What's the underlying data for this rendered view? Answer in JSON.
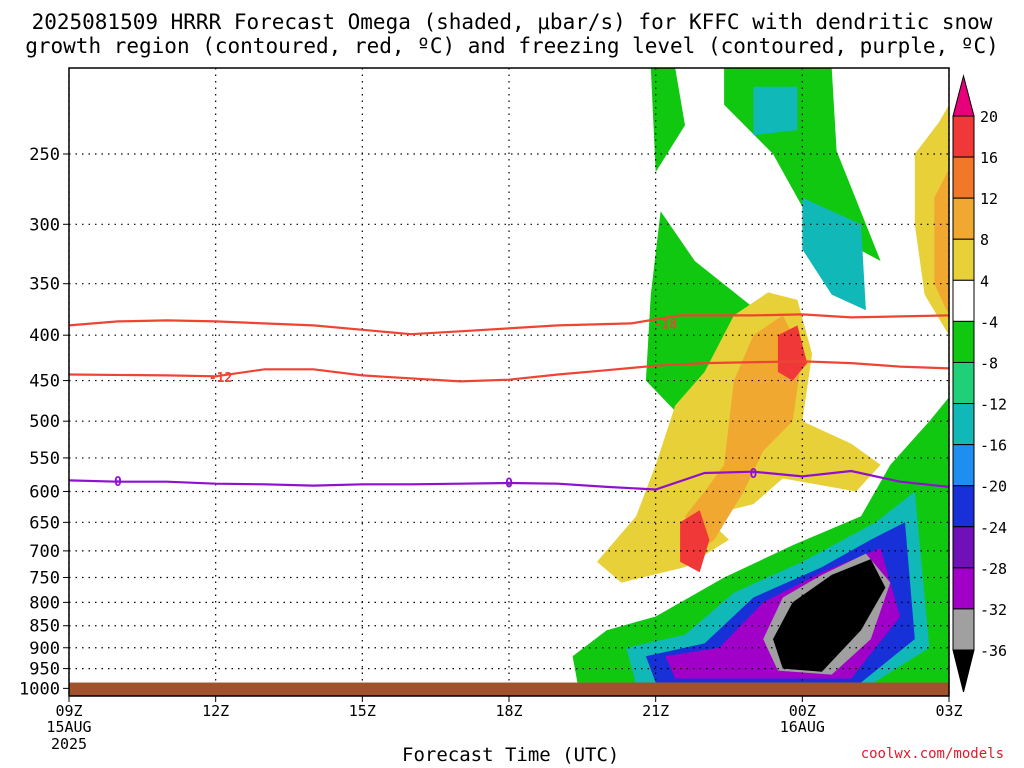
{
  "header": {
    "title_line1": "2025081509 HRRR Forecast Omega (shaded, μbar/s) for KFFC with dendritic snow",
    "title_line2": "growth region (contoured, red, ºC) and freezing level (contoured, purple, ºC)"
  },
  "footer": {
    "xlabel": "Forecast Time (UTC)",
    "credit": "coolwx.com/models"
  },
  "colors": {
    "dgz": "#ee4433",
    "freezing": "#9010d0",
    "ground": "#a0522d"
  },
  "chart_data": {
    "type": "heatmap",
    "title": "2025081509 HRRR Forecast Omega (shaded, μbar/s) for KFFC with dendritic snow growth region (contoured, red, ºC) and freezing level (contoured, purple, ºC)",
    "xlabel": "Forecast Time (UTC)",
    "ylabel": "",
    "y_scale": "log-pressure",
    "ylim": [
      1020,
      200
    ],
    "xlim": [
      0,
      18
    ],
    "x_ticks": [
      {
        "hour": 0,
        "label": "09Z",
        "label2": "15AUG",
        "label3": "2025"
      },
      {
        "hour": 3,
        "label": "12Z"
      },
      {
        "hour": 6,
        "label": "15Z"
      },
      {
        "hour": 9,
        "label": "18Z"
      },
      {
        "hour": 12,
        "label": "21Z"
      },
      {
        "hour": 15,
        "label": "00Z",
        "label2": "16AUG"
      },
      {
        "hour": 18,
        "label": "03Z"
      }
    ],
    "y_ticks": [
      250,
      300,
      350,
      400,
      450,
      500,
      550,
      600,
      650,
      700,
      750,
      800,
      850,
      900,
      950,
      1000
    ],
    "grid": true,
    "ground_below_hpa": 985,
    "colorbar": {
      "ticks": [
        20,
        16,
        12,
        8,
        4,
        -4,
        -8,
        -12,
        -16,
        -20,
        -24,
        -28,
        -32,
        -36
      ],
      "colors": [
        "#e8007a",
        "#f03838",
        "#f07828",
        "#f0a830",
        "#e8d038",
        "#ffffff",
        "#10c810",
        "#20d078",
        "#10b8b8",
        "#1e8ef0",
        "#1830d8",
        "#7010b8",
        "#a000c8",
        "#a0a0a0",
        "#000000"
      ]
    },
    "contours": [
      {
        "name": "-18",
        "color": "#ee4433",
        "points": [
          [
            0,
            390
          ],
          [
            1,
            386
          ],
          [
            2,
            385
          ],
          [
            3,
            386
          ],
          [
            5,
            390
          ],
          [
            7,
            399
          ],
          [
            8,
            396
          ],
          [
            10,
            390
          ],
          [
            11.5,
            388
          ],
          [
            12.5,
            380
          ],
          [
            14,
            380
          ],
          [
            15,
            379
          ],
          [
            16,
            382
          ],
          [
            18,
            380
          ]
        ]
      },
      {
        "name": "-12",
        "color": "#ee4433",
        "points": [
          [
            0,
            443
          ],
          [
            2,
            444
          ],
          [
            3,
            445
          ],
          [
            4,
            437
          ],
          [
            5,
            437
          ],
          [
            6,
            444
          ],
          [
            8,
            451
          ],
          [
            9,
            449
          ],
          [
            10,
            443
          ],
          [
            11,
            438
          ],
          [
            12,
            433
          ],
          [
            13,
            430
          ],
          [
            15,
            428
          ],
          [
            16,
            430
          ],
          [
            17,
            434
          ],
          [
            18,
            436
          ]
        ]
      },
      {
        "name": "0",
        "color": "#9010d0",
        "points": [
          [
            0,
            583
          ],
          [
            1,
            585
          ],
          [
            2,
            585
          ],
          [
            3,
            588
          ],
          [
            4,
            589
          ],
          [
            5,
            591
          ],
          [
            6,
            589
          ],
          [
            7,
            589
          ],
          [
            8,
            588
          ],
          [
            9,
            587
          ],
          [
            10,
            588
          ],
          [
            11,
            593
          ],
          [
            12,
            597
          ],
          [
            13,
            572
          ],
          [
            14,
            570
          ],
          [
            15,
            577
          ],
          [
            16,
            569
          ],
          [
            17,
            585
          ],
          [
            18,
            593
          ]
        ]
      }
    ],
    "contour_labels": [
      {
        "text": "-18",
        "hour": 12.2,
        "hpa": 388
      },
      {
        "text": "-12",
        "hour": 3.1,
        "hpa": 446
      },
      {
        "text": "0",
        "hour": 1.0,
        "hpa": 584
      },
      {
        "text": "0",
        "hour": 9.0,
        "hpa": 586
      },
      {
        "text": "0",
        "hour": 14.0,
        "hpa": 572
      }
    ],
    "omega_regions": [
      {
        "name": "green-upper",
        "value": -4,
        "points": [
          [
            11.9,
            200
          ],
          [
            12.4,
            200
          ],
          [
            12.6,
            232
          ],
          [
            12.0,
            262
          ],
          [
            11.9,
            200
          ]
        ]
      },
      {
        "name": "green-upper2",
        "value": -4,
        "points": [
          [
            13.4,
            200
          ],
          [
            15.6,
            200
          ],
          [
            15.7,
            248
          ],
          [
            16.6,
            330
          ],
          [
            15.2,
            300
          ],
          [
            14.4,
            250
          ],
          [
            13.4,
            220
          ]
        ]
      },
      {
        "name": "green-mid",
        "value": -4,
        "points": [
          [
            12.1,
            290
          ],
          [
            12.8,
            330
          ],
          [
            14.2,
            380
          ],
          [
            14.5,
            430
          ],
          [
            13.4,
            470
          ],
          [
            12.6,
            500
          ],
          [
            11.8,
            450
          ],
          [
            11.9,
            360
          ]
        ]
      },
      {
        "name": "teal-upper",
        "value": -12,
        "points": [
          [
            14.0,
            210
          ],
          [
            14.9,
            210
          ],
          [
            14.9,
            235
          ],
          [
            14.0,
            238
          ]
        ]
      },
      {
        "name": "teal-mid",
        "value": -12,
        "points": [
          [
            15.0,
            280
          ],
          [
            16.2,
            300
          ],
          [
            16.3,
            375
          ],
          [
            15.6,
            360
          ],
          [
            15.0,
            320
          ]
        ]
      },
      {
        "name": "yellow-right",
        "value": 4,
        "points": [
          [
            17.3,
            250
          ],
          [
            17.8,
            230
          ],
          [
            18.0,
            220
          ],
          [
            18.0,
            400
          ],
          [
            17.5,
            360
          ],
          [
            17.3,
            300
          ]
        ]
      },
      {
        "name": "orange-right",
        "value": 8,
        "points": [
          [
            17.7,
            280
          ],
          [
            18.0,
            260
          ],
          [
            18.0,
            380
          ],
          [
            17.7,
            350
          ]
        ]
      },
      {
        "name": "yellow-main",
        "value": 4,
        "points": [
          [
            12.4,
            480
          ],
          [
            13.0,
            440
          ],
          [
            13.6,
            380
          ],
          [
            14.3,
            358
          ],
          [
            14.9,
            365
          ],
          [
            15.2,
            420
          ],
          [
            15.0,
            500
          ],
          [
            16.0,
            530
          ],
          [
            16.6,
            560
          ],
          [
            16.1,
            600
          ],
          [
            14.6,
            580
          ],
          [
            14.0,
            620
          ],
          [
            13.0,
            640
          ],
          [
            13.5,
            680
          ],
          [
            12.6,
            730
          ],
          [
            11.3,
            760
          ],
          [
            10.8,
            720
          ],
          [
            11.6,
            640
          ],
          [
            12.0,
            560
          ]
        ]
      },
      {
        "name": "orange-main",
        "value": 8,
        "points": [
          [
            13.4,
            560
          ],
          [
            13.6,
            450
          ],
          [
            14.0,
            400
          ],
          [
            14.6,
            380
          ],
          [
            15.0,
            420
          ],
          [
            14.8,
            500
          ],
          [
            14.2,
            540
          ],
          [
            13.8,
            600
          ],
          [
            13.2,
            680
          ],
          [
            12.9,
            700
          ],
          [
            12.6,
            640
          ],
          [
            13.0,
            600
          ]
        ]
      },
      {
        "name": "red-core",
        "value": 16,
        "points": [
          [
            14.5,
            400
          ],
          [
            14.9,
            390
          ],
          [
            15.1,
            430
          ],
          [
            14.8,
            450
          ],
          [
            14.5,
            440
          ]
        ]
      },
      {
        "name": "red-low",
        "value": 16,
        "points": [
          [
            12.5,
            650
          ],
          [
            12.9,
            630
          ],
          [
            13.1,
            680
          ],
          [
            12.9,
            740
          ],
          [
            12.5,
            720
          ]
        ]
      },
      {
        "name": "green-lower",
        "value": -4,
        "points": [
          [
            10.3,
            920
          ],
          [
            11.0,
            860
          ],
          [
            12.0,
            830
          ],
          [
            13.4,
            750
          ],
          [
            14.8,
            690
          ],
          [
            16.2,
            640
          ],
          [
            16.8,
            560
          ],
          [
            17.6,
            500
          ],
          [
            18.0,
            470
          ],
          [
            18.0,
            990
          ],
          [
            10.4,
            985
          ]
        ]
      },
      {
        "name": "teal-lower",
        "value": -12,
        "points": [
          [
            11.4,
            900
          ],
          [
            12.6,
            870
          ],
          [
            13.6,
            780
          ],
          [
            15.0,
            720
          ],
          [
            16.5,
            650
          ],
          [
            17.3,
            600
          ],
          [
            17.6,
            900
          ],
          [
            16.4,
            990
          ],
          [
            11.6,
            990
          ]
        ]
      },
      {
        "name": "blue-lower",
        "value": -20,
        "points": [
          [
            11.8,
            920
          ],
          [
            13.0,
            890
          ],
          [
            14.0,
            790
          ],
          [
            15.4,
            730
          ],
          [
            16.4,
            680
          ],
          [
            17.1,
            650
          ],
          [
            17.3,
            880
          ],
          [
            16.2,
            985
          ],
          [
            12.0,
            985
          ]
        ]
      },
      {
        "name": "purple-lower",
        "value": -28,
        "points": [
          [
            12.2,
            920
          ],
          [
            13.3,
            900
          ],
          [
            14.2,
            800
          ],
          [
            15.4,
            740
          ],
          [
            16.6,
            695
          ],
          [
            17.0,
            830
          ],
          [
            16.0,
            975
          ],
          [
            12.4,
            975
          ]
        ]
      },
      {
        "name": "gray-lower",
        "value": -32,
        "points": [
          [
            14.2,
            880
          ],
          [
            14.6,
            790
          ],
          [
            15.4,
            745
          ],
          [
            16.3,
            705
          ],
          [
            16.8,
            760
          ],
          [
            16.4,
            880
          ],
          [
            15.6,
            965
          ],
          [
            14.5,
            955
          ]
        ]
      },
      {
        "name": "black-core",
        "value": -36,
        "points": [
          [
            14.4,
            880
          ],
          [
            14.8,
            800
          ],
          [
            15.6,
            745
          ],
          [
            16.4,
            715
          ],
          [
            16.7,
            770
          ],
          [
            16.2,
            860
          ],
          [
            15.4,
            958
          ],
          [
            14.6,
            950
          ]
        ]
      }
    ]
  }
}
